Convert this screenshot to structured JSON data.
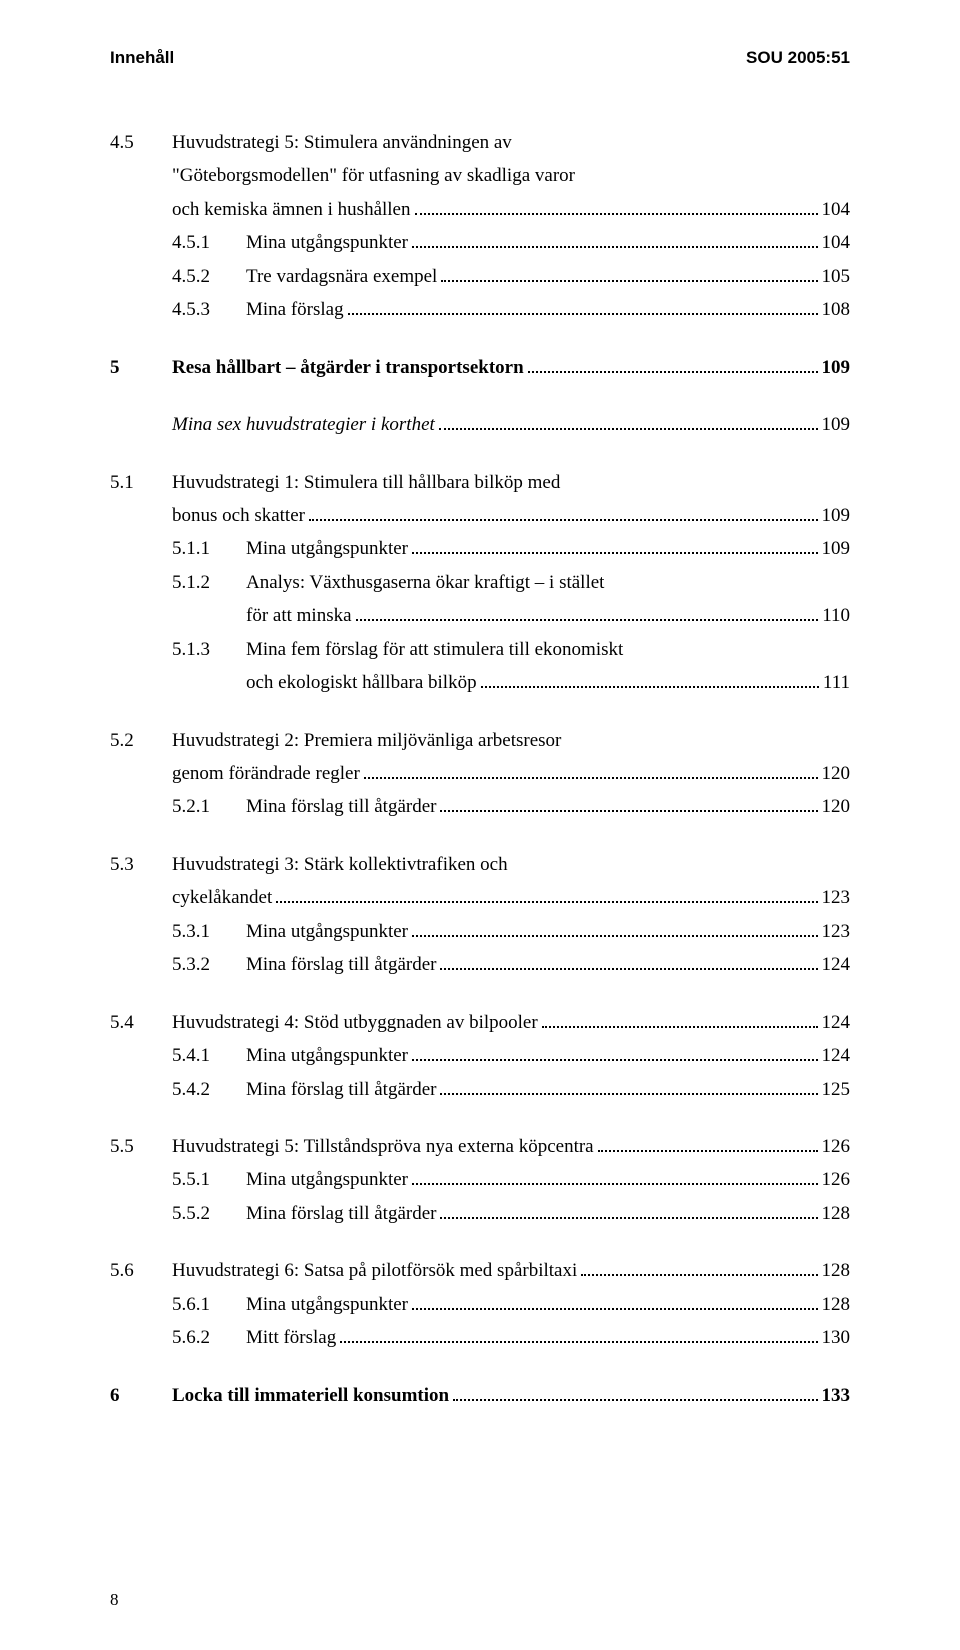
{
  "header": {
    "left": "Innehåll",
    "right": "SOU 2005:51"
  },
  "toc": [
    {
      "type": "group",
      "items": [
        {
          "level": 1,
          "num": "4.5",
          "labelLines": [
            "Huvudstrategi 5: Stimulera användningen av",
            "\"Göteborgsmodellen\" för utfasning av skadliga varor",
            "och kemiska ämnen i hushållen"
          ],
          "page": "104"
        },
        {
          "level": 2,
          "num": "4.5.1",
          "label": "Mina utgångspunkter",
          "page": "104"
        },
        {
          "level": 2,
          "num": "4.5.2",
          "label": "Tre vardagsnära exempel",
          "page": "105"
        },
        {
          "level": 2,
          "num": "4.5.3",
          "label": "Mina förslag",
          "page": "108"
        }
      ]
    },
    {
      "type": "chapter",
      "num": "5",
      "label": "Resa hållbart – åtgärder i transportsektorn",
      "page": "109"
    },
    {
      "type": "group",
      "items": [
        {
          "level": 1,
          "num": "",
          "label": "Mina sex huvudstrategier i korthet",
          "page": "109",
          "italic": true
        }
      ]
    },
    {
      "type": "group",
      "items": [
        {
          "level": 1,
          "num": "5.1",
          "labelLines": [
            "Huvudstrategi 1: Stimulera till hållbara bilköp med",
            "bonus och skatter"
          ],
          "page": "109"
        },
        {
          "level": 2,
          "num": "5.1.1",
          "label": "Mina utgångspunkter",
          "page": "109"
        },
        {
          "level": 2,
          "num": "5.1.2",
          "labelLines": [
            "Analys: Växthusgaserna ökar kraftigt – i stället",
            "för att minska"
          ],
          "page": "110"
        },
        {
          "level": 2,
          "num": "5.1.3",
          "labelLines": [
            "Mina fem förslag för att stimulera till ekonomiskt",
            "och ekologiskt hållbara bilköp"
          ],
          "page": "111"
        }
      ]
    },
    {
      "type": "group",
      "items": [
        {
          "level": 1,
          "num": "5.2",
          "labelLines": [
            "Huvudstrategi 2: Premiera miljövänliga arbetsresor",
            "genom förändrade regler"
          ],
          "page": "120"
        },
        {
          "level": 2,
          "num": "5.2.1",
          "label": "Mina förslag till åtgärder",
          "page": "120"
        }
      ]
    },
    {
      "type": "group",
      "items": [
        {
          "level": 1,
          "num": "5.3",
          "labelLines": [
            "Huvudstrategi 3: Stärk kollektivtrafiken och",
            "cykelåkandet"
          ],
          "page": "123"
        },
        {
          "level": 2,
          "num": "5.3.1",
          "label": "Mina utgångspunkter",
          "page": "123"
        },
        {
          "level": 2,
          "num": "5.3.2",
          "label": "Mina förslag till åtgärder",
          "page": "124"
        }
      ]
    },
    {
      "type": "group",
      "items": [
        {
          "level": 1,
          "num": "5.4",
          "label": "Huvudstrategi 4: Stöd utbyggnaden av bilpooler",
          "page": "124"
        },
        {
          "level": 2,
          "num": "5.4.1",
          "label": "Mina utgångspunkter",
          "page": "124"
        },
        {
          "level": 2,
          "num": "5.4.2",
          "label": "Mina förslag till åtgärder",
          "page": "125"
        }
      ]
    },
    {
      "type": "group",
      "items": [
        {
          "level": 1,
          "num": "5.5",
          "label": "Huvudstrategi 5: Tillståndspröva nya externa köpcentra",
          "page": "126"
        },
        {
          "level": 2,
          "num": "5.5.1",
          "label": "Mina utgångspunkter",
          "page": "126"
        },
        {
          "level": 2,
          "num": "5.5.2",
          "label": "Mina förslag till åtgärder",
          "page": "128"
        }
      ]
    },
    {
      "type": "group",
      "items": [
        {
          "level": 1,
          "num": "5.6",
          "label": "Huvudstrategi 6: Satsa på pilotförsök med spårbiltaxi",
          "page": "128"
        },
        {
          "level": 2,
          "num": "5.6.1",
          "label": "Mina utgångspunkter",
          "page": "128"
        },
        {
          "level": 2,
          "num": "5.6.2",
          "label": "Mitt förslag",
          "page": "130"
        }
      ]
    },
    {
      "type": "chapter",
      "num": "6",
      "label": "Locka till immateriell konsumtion",
      "page": "133"
    }
  ],
  "footer": {
    "pageNumber": "8"
  }
}
